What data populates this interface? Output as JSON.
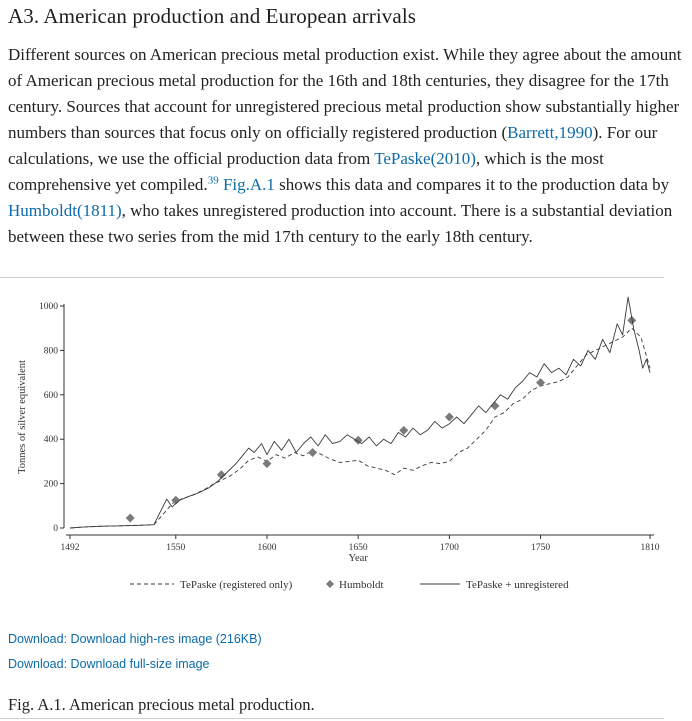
{
  "section": {
    "heading": "A3. American production and European arrivals",
    "paragraph": {
      "t1": "Different sources on American precious metal production exist. While they agree about the amount of American precious metal production for the 16th and 18th centuries, they disagree for the 17th century. Sources that account for unregistered precious metal production show substantially higher numbers than sources that focus only on officially registered production (",
      "link_barrett": "Barrett,1990",
      "t2": "). For our calculations, we use the official production data from ",
      "link_tepaske": "TePaske(2010)",
      "t3": ", which is the most comprehensive yet compiled.",
      "footnote": "39",
      "t4": " ",
      "link_fig": "Fig.A.1",
      "t5": " shows this data and compares it to the production data by ",
      "link_humboldt": "Humboldt(1811)",
      "t6": ", who takes unregistered production into account. There is a substantial deviation between these two series from the mid 17th century to the early 18th century."
    }
  },
  "downloads": {
    "high_res": "Download: Download high-res image (216KB)",
    "full_size": "Download: Download full-size image"
  },
  "caption": "Fig. A.1. American precious metal production.",
  "chart_data": {
    "type": "line",
    "title": "",
    "xlabel": "Year",
    "ylabel": "Tonnes of silver equivalent",
    "xlim": [
      1492,
      1810
    ],
    "ylim": [
      0,
      1000
    ],
    "x_ticks": [
      "1492",
      "1550",
      "1600",
      "1650",
      "1700",
      "1750",
      "1810"
    ],
    "y_ticks": [
      "0",
      "200",
      "400",
      "600",
      "800",
      "1000"
    ],
    "legend_position": "bottom",
    "series": [
      {
        "name": "TePaske (registered only)",
        "style": "dashed",
        "points": [
          [
            1492,
            0
          ],
          [
            1500,
            5
          ],
          [
            1510,
            8
          ],
          [
            1520,
            10
          ],
          [
            1530,
            12
          ],
          [
            1538,
            15
          ],
          [
            1545,
            80
          ],
          [
            1548,
            110
          ],
          [
            1553,
            130
          ],
          [
            1560,
            150
          ],
          [
            1566,
            175
          ],
          [
            1570,
            195
          ],
          [
            1575,
            215
          ],
          [
            1580,
            235
          ],
          [
            1585,
            265
          ],
          [
            1590,
            305
          ],
          [
            1595,
            320
          ],
          [
            1600,
            300
          ],
          [
            1605,
            330
          ],
          [
            1610,
            315
          ],
          [
            1615,
            340
          ],
          [
            1620,
            325
          ],
          [
            1625,
            350
          ],
          [
            1630,
            330
          ],
          [
            1635,
            310
          ],
          [
            1640,
            295
          ],
          [
            1645,
            300
          ],
          [
            1650,
            305
          ],
          [
            1655,
            280
          ],
          [
            1660,
            270
          ],
          [
            1665,
            260
          ],
          [
            1670,
            240
          ],
          [
            1675,
            270
          ],
          [
            1680,
            260
          ],
          [
            1685,
            280
          ],
          [
            1690,
            295
          ],
          [
            1695,
            290
          ],
          [
            1700,
            300
          ],
          [
            1705,
            340
          ],
          [
            1710,
            360
          ],
          [
            1715,
            400
          ],
          [
            1720,
            440
          ],
          [
            1725,
            500
          ],
          [
            1730,
            520
          ],
          [
            1735,
            560
          ],
          [
            1740,
            580
          ],
          [
            1745,
            620
          ],
          [
            1750,
            640
          ],
          [
            1755,
            650
          ],
          [
            1760,
            660
          ],
          [
            1765,
            680
          ],
          [
            1770,
            730
          ],
          [
            1775,
            780
          ],
          [
            1780,
            800
          ],
          [
            1785,
            820
          ],
          [
            1790,
            840
          ],
          [
            1795,
            860
          ],
          [
            1800,
            900
          ],
          [
            1805,
            860
          ],
          [
            1810,
            720
          ]
        ]
      },
      {
        "name": "Humboldt",
        "style": "markers",
        "points": [
          [
            1525,
            45
          ],
          [
            1550,
            125
          ],
          [
            1575,
            240
          ],
          [
            1600,
            290
          ],
          [
            1625,
            340
          ],
          [
            1650,
            395
          ],
          [
            1675,
            440
          ],
          [
            1700,
            500
          ],
          [
            1725,
            550
          ],
          [
            1750,
            655
          ],
          [
            1800,
            935
          ]
        ]
      },
      {
        "name": "TePaske + unregistered",
        "style": "solid",
        "points": [
          [
            1492,
            0
          ],
          [
            1500,
            5
          ],
          [
            1510,
            8
          ],
          [
            1520,
            10
          ],
          [
            1530,
            12
          ],
          [
            1538,
            15
          ],
          [
            1545,
            130
          ],
          [
            1548,
            95
          ],
          [
            1552,
            125
          ],
          [
            1558,
            145
          ],
          [
            1563,
            160
          ],
          [
            1568,
            180
          ],
          [
            1573,
            210
          ],
          [
            1578,
            250
          ],
          [
            1583,
            290
          ],
          [
            1587,
            330
          ],
          [
            1590,
            360
          ],
          [
            1593,
            340
          ],
          [
            1597,
            380
          ],
          [
            1600,
            330
          ],
          [
            1604,
            390
          ],
          [
            1608,
            350
          ],
          [
            1612,
            400
          ],
          [
            1616,
            340
          ],
          [
            1620,
            380
          ],
          [
            1624,
            410
          ],
          [
            1628,
            370
          ],
          [
            1632,
            420
          ],
          [
            1636,
            380
          ],
          [
            1640,
            390
          ],
          [
            1644,
            420
          ],
          [
            1648,
            400
          ],
          [
            1652,
            380
          ],
          [
            1656,
            410
          ],
          [
            1660,
            370
          ],
          [
            1664,
            400
          ],
          [
            1668,
            380
          ],
          [
            1672,
            430
          ],
          [
            1676,
            410
          ],
          [
            1680,
            450
          ],
          [
            1684,
            420
          ],
          [
            1688,
            440
          ],
          [
            1692,
            480
          ],
          [
            1696,
            450
          ],
          [
            1700,
            470
          ],
          [
            1704,
            500
          ],
          [
            1708,
            470
          ],
          [
            1712,
            510
          ],
          [
            1716,
            550
          ],
          [
            1720,
            520
          ],
          [
            1724,
            560
          ],
          [
            1728,
            600
          ],
          [
            1732,
            580
          ],
          [
            1736,
            630
          ],
          [
            1740,
            660
          ],
          [
            1744,
            700
          ],
          [
            1748,
            680
          ],
          [
            1752,
            740
          ],
          [
            1756,
            700
          ],
          [
            1760,
            720
          ],
          [
            1764,
            690
          ],
          [
            1768,
            760
          ],
          [
            1772,
            730
          ],
          [
            1776,
            800
          ],
          [
            1780,
            760
          ],
          [
            1784,
            850
          ],
          [
            1788,
            790
          ],
          [
            1792,
            920
          ],
          [
            1795,
            870
          ],
          [
            1798,
            1040
          ],
          [
            1801,
            900
          ],
          [
            1804,
            800
          ],
          [
            1806,
            720
          ],
          [
            1808,
            760
          ],
          [
            1810,
            700
          ]
        ]
      }
    ],
    "legend": [
      {
        "label": "TePaske (registered only)",
        "style": "dashed"
      },
      {
        "label": "Humboldt",
        "style": "markers"
      },
      {
        "label": "TePaske + unregistered",
        "style": "solid"
      }
    ],
    "colors": {
      "line": "#3a3a3a",
      "marker": "#7a7a7a",
      "axis": "#333333"
    }
  }
}
